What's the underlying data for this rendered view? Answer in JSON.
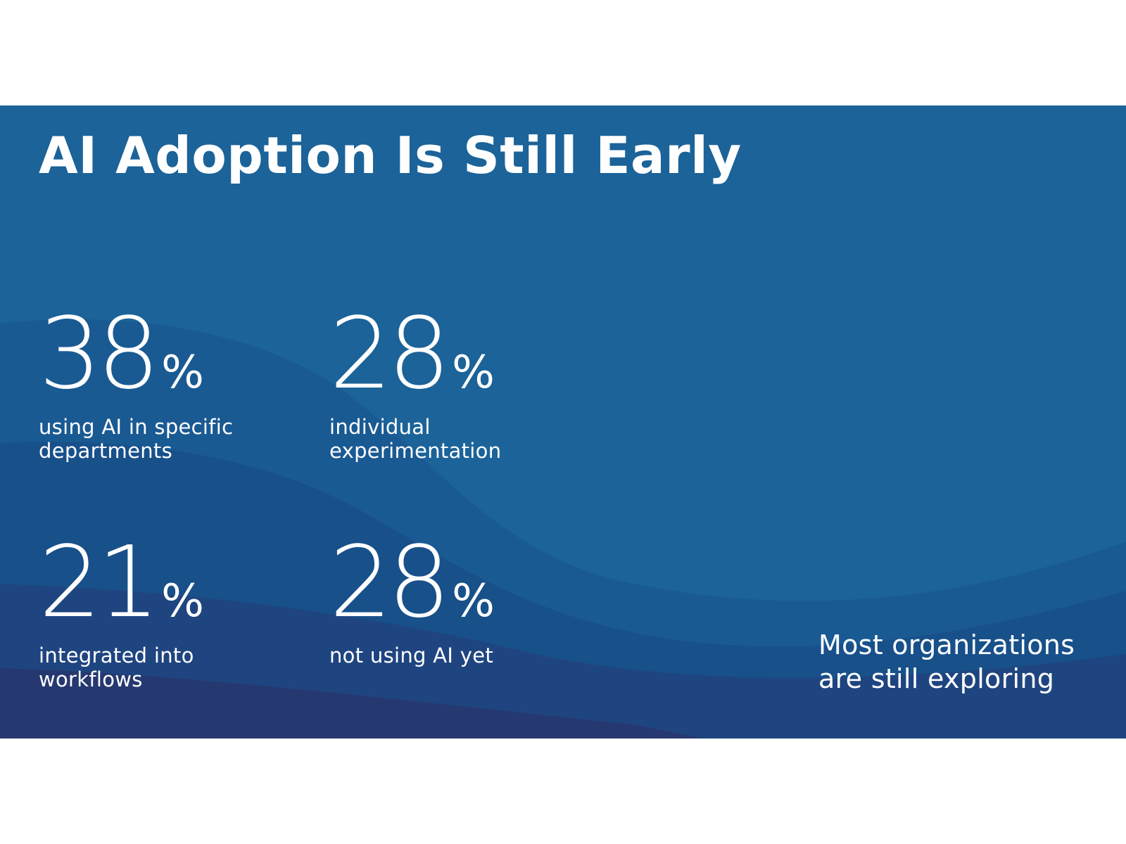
{
  "slide": {
    "title": "AI Adoption Is Still Early",
    "stats": [
      {
        "value": "38",
        "unit": "%",
        "label": "using AI in specific departments"
      },
      {
        "value": "28",
        "unit": "%",
        "label": "individual experimentation"
      },
      {
        "value": "21",
        "unit": "%",
        "label": "integrated into workflows"
      },
      {
        "value": "28",
        "unit": "%",
        "label": "not using AI yet"
      }
    ],
    "note": "Most organizations are still exploring"
  },
  "colors": {
    "background_top": "#1b6399",
    "wave_mid": "#174f8a",
    "wave_dark": "#1f3f77",
    "wave_darkest": "#26336b",
    "text": "#ffffff"
  }
}
